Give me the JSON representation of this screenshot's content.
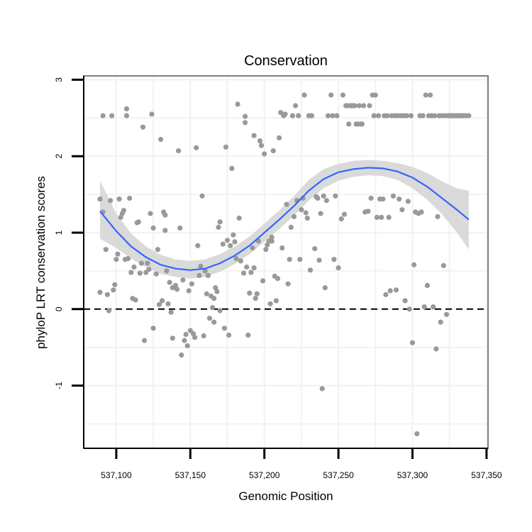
{
  "chart_data": {
    "type": "scatter",
    "title": "Conservation",
    "xlabel": "Genomic Position",
    "ylabel": "phyloP LRT conservation scores",
    "xlim": [
      537078,
      537351
    ],
    "ylim": [
      -1.82,
      3.05
    ],
    "x_ticks": [
      537100,
      537150,
      537200,
      537250,
      537300,
      537350
    ],
    "x_tick_labels": [
      "537,100",
      "537,150",
      "537,200",
      "537,250",
      "537,300",
      "537,350"
    ],
    "y_ticks": [
      -1,
      0,
      1,
      2,
      3
    ],
    "y_tick_labels": [
      "-1",
      "0",
      "1",
      "2",
      "3"
    ],
    "reference_line": {
      "y": 0,
      "style": "dashed"
    },
    "points": [
      [
        537091,
        2.53
      ],
      [
        537097,
        2.53
      ],
      [
        537089,
        1.44
      ],
      [
        537091,
        1.27
      ],
      [
        537093,
        0.78
      ],
      [
        537089,
        0.22
      ],
      [
        537094,
        0.19
      ],
      [
        537095,
        -0.02
      ],
      [
        537098,
        0.25
      ],
      [
        537099,
        0.32
      ],
      [
        537096,
        1.42
      ],
      [
        537100,
        0.65
      ],
      [
        537101,
        0.72
      ],
      [
        537102,
        1.44
      ],
      [
        537104,
        1.25
      ],
      [
        537103,
        1.2
      ],
      [
        537105,
        1.29
      ],
      [
        537106,
        0.65
      ],
      [
        537108,
        0.66
      ],
      [
        537109,
        1.45
      ],
      [
        537107,
        2.62
      ],
      [
        537107,
        2.53
      ],
      [
        537110,
        0.48
      ],
      [
        537111,
        0.14
      ],
      [
        537112,
        0.55
      ],
      [
        537113,
        0.12
      ],
      [
        537114,
        1.13
      ],
      [
        537115,
        1.14
      ],
      [
        537116,
        0.47
      ],
      [
        537117,
        0.6
      ],
      [
        537118,
        2.38
      ],
      [
        537119,
        -0.41
      ],
      [
        537120,
        0.48
      ],
      [
        537121,
        0.6
      ],
      [
        537122,
        0.52
      ],
      [
        537123,
        1.25
      ],
      [
        537124,
        2.55
      ],
      [
        537125,
        1.06
      ],
      [
        537125,
        -0.25
      ],
      [
        537127,
        0.46
      ],
      [
        537128,
        0.78
      ],
      [
        537129,
        0.06
      ],
      [
        537130,
        2.22
      ],
      [
        537131,
        0.11
      ],
      [
        537132,
        1.27
      ],
      [
        537133,
        1.23
      ],
      [
        537133,
        1.03
      ],
      [
        537134,
        0.5
      ],
      [
        537135,
        0.07
      ],
      [
        537136,
        0.35
      ],
      [
        537137,
        -0.04
      ],
      [
        537138,
        0.28
      ],
      [
        537138,
        -0.38
      ],
      [
        537140,
        0.31
      ],
      [
        537141,
        0.26
      ],
      [
        537142,
        2.07
      ],
      [
        537143,
        1.06
      ],
      [
        537144,
        -0.6
      ],
      [
        537145,
        0.38
      ],
      [
        537146,
        -0.41
      ],
      [
        537147,
        -0.33
      ],
      [
        537148,
        -0.48
      ],
      [
        537149,
        0.24
      ],
      [
        537150,
        -0.28
      ],
      [
        537151,
        0.33
      ],
      [
        537152,
        -0.32
      ],
      [
        537153,
        -0.37
      ],
      [
        537154,
        2.11
      ],
      [
        537155,
        0.83
      ],
      [
        537156,
        0.44
      ],
      [
        537157,
        0.56
      ],
      [
        537158,
        1.48
      ],
      [
        537159,
        -0.35
      ],
      [
        537160,
        0.5
      ],
      [
        537161,
        0.2
      ],
      [
        537162,
        0.44
      ],
      [
        537163,
        -0.12
      ],
      [
        537164,
        0.17
      ],
      [
        537165,
        0.02
      ],
      [
        537166,
        0.14
      ],
      [
        537166,
        -0.17
      ],
      [
        537167,
        0.28
      ],
      [
        537168,
        0.23
      ],
      [
        537169,
        1.07
      ],
      [
        537170,
        1.14
      ],
      [
        537170,
        -0.02
      ],
      [
        537172,
        0.85
      ],
      [
        537173,
        -0.25
      ],
      [
        537174,
        2.12
      ],
      [
        537175,
        0.9
      ],
      [
        537176,
        -0.34
      ],
      [
        537177,
        0.83
      ],
      [
        537178,
        1.84
      ],
      [
        537179,
        0.97
      ],
      [
        537180,
        0.88
      ],
      [
        537181,
        0.66
      ],
      [
        537182,
        2.68
      ],
      [
        537183,
        1.19
      ],
      [
        537184,
        0.63
      ],
      [
        537186,
        0.47
      ],
      [
        537187,
        2.44
      ],
      [
        537187,
        2.52
      ],
      [
        537188,
        0.55
      ],
      [
        537189,
        -0.34
      ],
      [
        537190,
        0.21
      ],
      [
        537191,
        0.48
      ],
      [
        537192,
        0.8
      ],
      [
        537193,
        0.54
      ],
      [
        537193,
        2.27
      ],
      [
        537194,
        0.14
      ],
      [
        537195,
        0.2
      ],
      [
        537196,
        0.89
      ],
      [
        537197,
        2.2
      ],
      [
        537198,
        2.14
      ],
      [
        537199,
        0.37
      ],
      [
        537200,
        2.03
      ],
      [
        537201,
        0.78
      ],
      [
        537202,
        0.84
      ],
      [
        537203,
        0.89
      ],
      [
        537204,
        0.07
      ],
      [
        537205,
        0.89
      ],
      [
        537205,
        0.94
      ],
      [
        537206,
        2.07
      ],
      [
        537207,
        0.43
      ],
      [
        537208,
        0.11
      ],
      [
        537209,
        0.4
      ],
      [
        537210,
        2.24
      ],
      [
        537211,
        2.57
      ],
      [
        537212,
        0.8
      ],
      [
        537213,
        2.53
      ],
      [
        537214,
        2.55
      ],
      [
        537215,
        1.37
      ],
      [
        537216,
        0.33
      ],
      [
        537217,
        0.65
      ],
      [
        537218,
        1.07
      ],
      [
        537219,
        2.53
      ],
      [
        537220,
        1.21
      ],
      [
        537221,
        2.66
      ],
      [
        537222,
        1.42
      ],
      [
        537223,
        2.53
      ],
      [
        537224,
        0.65
      ],
      [
        537225,
        1.3
      ],
      [
        537226,
        1.45
      ],
      [
        537227,
        2.8
      ],
      [
        537228,
        1.26
      ],
      [
        537229,
        1.19
      ],
      [
        537230,
        2.53
      ],
      [
        537231,
        0.51
      ],
      [
        537232,
        2.53
      ],
      [
        537234,
        0.79
      ],
      [
        537235,
        1.47
      ],
      [
        537236,
        1.45
      ],
      [
        537237,
        0.64
      ],
      [
        537238,
        1.25
      ],
      [
        537239,
        -1.04
      ],
      [
        537240,
        1.48
      ],
      [
        537241,
        0.28
      ],
      [
        537242,
        1.42
      ],
      [
        537243,
        2.53
      ],
      [
        537245,
        2.8
      ],
      [
        537246,
        2.53
      ],
      [
        537247,
        0.65
      ],
      [
        537248,
        1.48
      ],
      [
        537249,
        2.53
      ],
      [
        537250,
        0.54
      ],
      [
        537252,
        1.18
      ],
      [
        537253,
        2.8
      ],
      [
        537254,
        1.24
      ],
      [
        537255,
        2.66
      ],
      [
        537256,
        2.66
      ],
      [
        537257,
        2.42
      ],
      [
        537258,
        2.66
      ],
      [
        537259,
        2.66
      ],
      [
        537260,
        2.66
      ],
      [
        537261,
        2.66
      ],
      [
        537262,
        2.42
      ],
      [
        537263,
        2.42
      ],
      [
        537264,
        2.66
      ],
      [
        537265,
        2.42
      ],
      [
        537266,
        2.42
      ],
      [
        537267,
        2.66
      ],
      [
        537268,
        1.27
      ],
      [
        537270,
        1.28
      ],
      [
        537271,
        2.66
      ],
      [
        537272,
        1.45
      ],
      [
        537273,
        2.8
      ],
      [
        537274,
        2.53
      ],
      [
        537275,
        2.8
      ],
      [
        537276,
        1.2
      ],
      [
        537277,
        2.53
      ],
      [
        537278,
        1.44
      ],
      [
        537279,
        1.2
      ],
      [
        537280,
        1.44
      ],
      [
        537281,
        2.53
      ],
      [
        537282,
        0.19
      ],
      [
        537283,
        2.53
      ],
      [
        537284,
        1.2
      ],
      [
        537285,
        0.24
      ],
      [
        537286,
        2.53
      ],
      [
        537287,
        1.48
      ],
      [
        537288,
        2.53
      ],
      [
        537289,
        0.25
      ],
      [
        537290,
        2.53
      ],
      [
        537291,
        1.44
      ],
      [
        537292,
        2.53
      ],
      [
        537293,
        1.3
      ],
      [
        537294,
        2.53
      ],
      [
        537295,
        0.11
      ],
      [
        537296,
        2.53
      ],
      [
        537297,
        1.41
      ],
      [
        537298,
        0.0
      ],
      [
        537299,
        2.53
      ],
      [
        537300,
        -0.44
      ],
      [
        537301,
        0.58
      ],
      [
        537302,
        1.27
      ],
      [
        537303,
        -1.63
      ],
      [
        537304,
        1.25
      ],
      [
        537305,
        2.53
      ],
      [
        537306,
        1.27
      ],
      [
        537307,
        2.53
      ],
      [
        537308,
        0.03
      ],
      [
        537309,
        2.8
      ],
      [
        537310,
        0.31
      ],
      [
        537311,
        2.53
      ],
      [
        537312,
        2.8
      ],
      [
        537313,
        2.53
      ],
      [
        537314,
        0.03
      ],
      [
        537315,
        2.53
      ],
      [
        537316,
        -0.52
      ],
      [
        537317,
        1.21
      ],
      [
        537318,
        2.53
      ],
      [
        537319,
        -0.17
      ],
      [
        537320,
        2.53
      ],
      [
        537321,
        0.57
      ],
      [
        537322,
        2.53
      ],
      [
        537323,
        -0.07
      ],
      [
        537324,
        2.53
      ],
      [
        537325,
        2.53
      ],
      [
        537326,
        2.53
      ],
      [
        537327,
        2.53
      ],
      [
        537328,
        2.53
      ],
      [
        537329,
        2.53
      ],
      [
        537330,
        2.53
      ],
      [
        537331,
        2.53
      ],
      [
        537332,
        2.53
      ],
      [
        537333,
        2.53
      ],
      [
        537334,
        2.53
      ],
      [
        537335,
        2.53
      ],
      [
        537336,
        2.53
      ],
      [
        537338,
        2.53
      ]
    ],
    "smooth_fit": {
      "x": [
        537089,
        537100,
        537110,
        537120,
        537130,
        537140,
        537150,
        537160,
        537170,
        537180,
        537190,
        537200,
        537210,
        537220,
        537230,
        537240,
        537250,
        537260,
        537270,
        537280,
        537290,
        537300,
        537310,
        537320,
        537330,
        537338
      ],
      "y": [
        1.28,
        1.02,
        0.82,
        0.68,
        0.58,
        0.53,
        0.51,
        0.53,
        0.6,
        0.7,
        0.83,
        1.0,
        1.17,
        1.35,
        1.55,
        1.7,
        1.79,
        1.83,
        1.85,
        1.84,
        1.8,
        1.72,
        1.6,
        1.45,
        1.3,
        1.17
      ],
      "lower": [
        0.92,
        0.8,
        0.66,
        0.55,
        0.46,
        0.42,
        0.4,
        0.42,
        0.49,
        0.59,
        0.72,
        0.88,
        1.05,
        1.22,
        1.42,
        1.58,
        1.68,
        1.73,
        1.75,
        1.74,
        1.69,
        1.58,
        1.43,
        1.24,
        1.0,
        0.78
      ],
      "upper": [
        1.68,
        1.25,
        0.99,
        0.82,
        0.71,
        0.65,
        0.63,
        0.65,
        0.72,
        0.82,
        0.95,
        1.12,
        1.29,
        1.48,
        1.69,
        1.83,
        1.9,
        1.94,
        1.95,
        1.94,
        1.91,
        1.86,
        1.78,
        1.67,
        1.58,
        1.55
      ]
    },
    "colors": {
      "points": "#999999",
      "smooth_line": "#3366ff",
      "confidence_band": "#d6d6d6",
      "panel_border": "#7f7f7f",
      "grid": "#f2f2f2",
      "axis": "#000000",
      "reference_line": "#000000"
    }
  }
}
